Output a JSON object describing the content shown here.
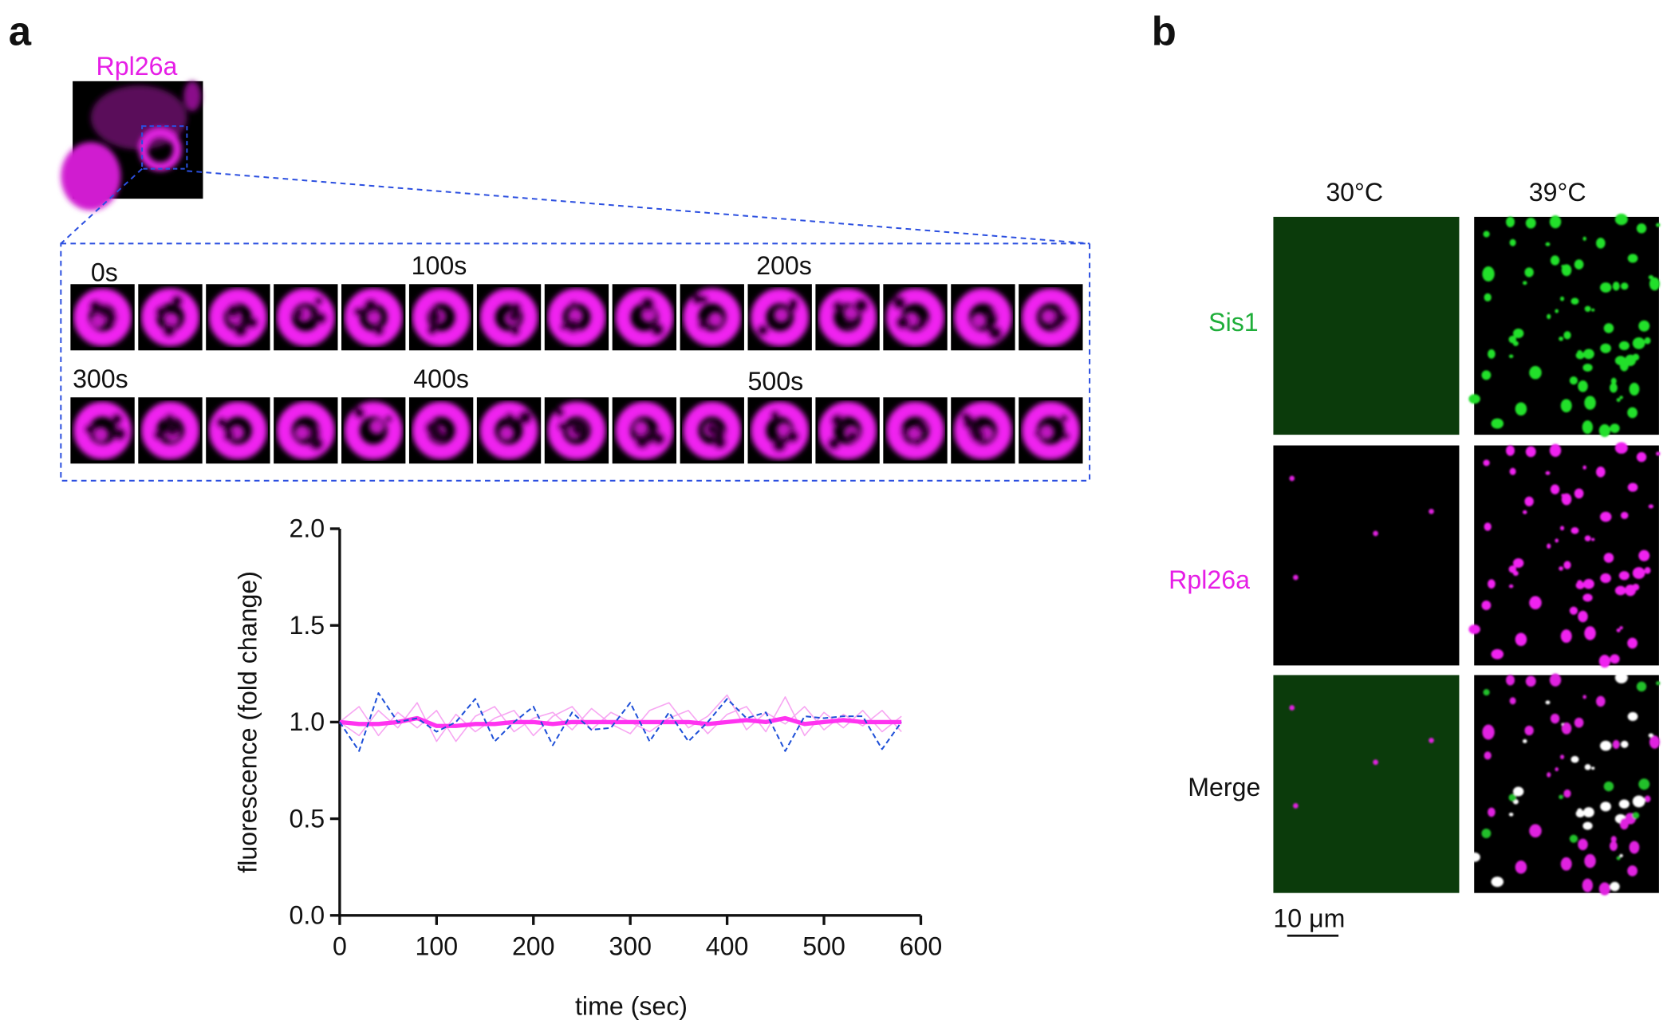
{
  "panels": {
    "a": {
      "label": "a",
      "image_label": "Rpl26a",
      "time_labels": [
        "0s",
        "100s",
        "200s",
        "300s",
        "400s",
        "500s"
      ]
    },
    "b": {
      "label": "b",
      "columns": [
        "30°C",
        "39°C"
      ],
      "rows": [
        "Sis1",
        "Rpl26a",
        "Merge"
      ],
      "scale_bar": "10 μm"
    }
  },
  "chart_data": {
    "type": "line",
    "xlabel": "time (sec)",
    "ylabel": "fluorescence (fold change)",
    "x": [
      0,
      20,
      40,
      60,
      80,
      100,
      120,
      140,
      160,
      180,
      200,
      220,
      240,
      260,
      280,
      300,
      320,
      340,
      360,
      380,
      400,
      420,
      440,
      460,
      480,
      500,
      520,
      540,
      560,
      580
    ],
    "xlim": [
      0,
      600
    ],
    "xticks": [
      0,
      100,
      200,
      300,
      400,
      500,
      600
    ],
    "ylim": [
      0,
      2
    ],
    "yticks": [
      {
        "value": 0,
        "label": "0.0"
      },
      {
        "value": 0.5,
        "label": "0.5"
      },
      {
        "value": 1,
        "label": "1.0"
      },
      {
        "value": 1.5,
        "label": "1.5"
      },
      {
        "value": 2,
        "label": "2.0"
      }
    ],
    "series": [
      {
        "color": "#f7a6f2",
        "linewidth": 1.2,
        "style": "solid",
        "values": [
          1.0,
          1.08,
          0.93,
          1.05,
          0.97,
          1.06,
          0.9,
          1.03,
          1.08,
          0.95,
          1.02,
          1.05,
          0.96,
          1.07,
          0.99,
          0.94,
          1.06,
          1.1,
          0.97,
          1.03,
          1.14,
          0.96,
          1.05,
          0.99,
          1.08,
          0.96,
          1.04,
          0.98,
          1.06,
          0.95
        ]
      },
      {
        "color": "#f7a6f2",
        "linewidth": 1.2,
        "style": "solid",
        "values": [
          1.0,
          0.93,
          1.06,
          0.97,
          1.1,
          0.9,
          1.04,
          0.95,
          1.02,
          1.06,
          0.93,
          1.03,
          1.08,
          0.96,
          1.05,
          1.0,
          0.95,
          1.02,
          1.06,
          0.94,
          1.04,
          1.08,
          0.95,
          1.13,
          0.93,
          1.05,
          0.97,
          1.06,
          0.95,
          1.03
        ]
      },
      {
        "color": "#ff33f0",
        "linewidth": 4,
        "style": "solid",
        "values": [
          1.0,
          0.99,
          0.99,
          1.0,
          1.02,
          0.98,
          0.98,
          0.99,
          0.99,
          1.0,
          1.0,
          0.99,
          1.0,
          1.0,
          1.0,
          1.0,
          1.0,
          1.0,
          1.0,
          0.99,
          1.0,
          1.01,
          1.0,
          1.02,
          0.99,
          1.0,
          1.01,
          1.0,
          1.0,
          1.0
        ]
      },
      {
        "color": "#1d4fd8",
        "linewidth": 1.5,
        "style": "dashed",
        "values": [
          1.0,
          0.85,
          1.15,
          1.0,
          1.02,
          0.95,
          1.0,
          1.12,
          0.9,
          1.0,
          1.08,
          0.88,
          1.05,
          0.96,
          0.97,
          1.1,
          0.9,
          1.05,
          0.9,
          1.0,
          1.12,
          1.02,
          1.05,
          0.85,
          1.03,
          1.02,
          1.03,
          1.03,
          0.86,
          1.0
        ]
      }
    ]
  }
}
